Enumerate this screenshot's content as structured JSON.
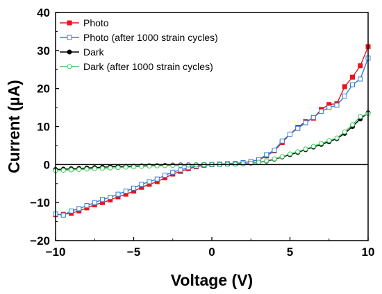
{
  "chart_data": {
    "type": "line",
    "xlabel": "Voltage (V)",
    "ylabel": "Current (µA)",
    "xlim": [
      -10,
      10
    ],
    "ylim": [
      -20,
      40
    ],
    "xticks": [
      -10,
      -5,
      0,
      5,
      10
    ],
    "xtick_labels": [
      "−10",
      "−5",
      "0",
      "5",
      "10"
    ],
    "yticks": [
      -20,
      -10,
      0,
      10,
      20,
      30,
      40
    ],
    "ytick_labels": [
      "−20",
      "−10",
      "0",
      "10",
      "20",
      "30",
      "40"
    ],
    "grid": false,
    "legend_position": "top-left",
    "series": [
      {
        "name": "Photo",
        "color": "#e8141e",
        "marker": "filled-square",
        "x": [
          -10,
          -9.5,
          -9,
          -8.5,
          -8,
          -7.5,
          -7,
          -6.5,
          -6,
          -5.5,
          -5,
          -4.5,
          -4,
          -3.5,
          -3,
          -2.5,
          -2,
          -1.5,
          -1,
          -0.5,
          0,
          0.5,
          1,
          1.5,
          2,
          2.5,
          3,
          3.5,
          4,
          4.5,
          5,
          5.5,
          6,
          6.5,
          7,
          7.5,
          8,
          8.5,
          9,
          9.5,
          10
        ],
        "y": [
          -13.2,
          -13.1,
          -12.8,
          -12.2,
          -11.4,
          -10.6,
          -10.0,
          -9.3,
          -8.5,
          -7.8,
          -7.0,
          -6.0,
          -5.2,
          -4.5,
          -3.5,
          -2.5,
          -1.8,
          -1.1,
          -0.6,
          -0.2,
          0,
          0.1,
          0.2,
          0.3,
          0.5,
          0.8,
          1.2,
          2.3,
          3.6,
          5.8,
          8.0,
          9.8,
          11.3,
          12.2,
          14.5,
          15.8,
          16.0,
          20.5,
          23.0,
          26.0,
          31.0
        ]
      },
      {
        "name": "Photo (after 1000 strain cycles)",
        "color": "#2e7fd8",
        "marker": "hollow-square",
        "x": [
          -10,
          -9.5,
          -9,
          -8.5,
          -8,
          -7.5,
          -7,
          -6.5,
          -6,
          -5.5,
          -5,
          -4.5,
          -4,
          -3.5,
          -3,
          -2.5,
          -2,
          -1.5,
          -1,
          -0.5,
          0,
          0.5,
          1,
          1.5,
          2,
          2.5,
          3,
          3.5,
          4,
          4.5,
          5,
          5.5,
          6,
          6.5,
          7,
          7.5,
          8,
          8.5,
          9,
          9.5,
          10
        ],
        "y": [
          -13.0,
          -13.3,
          -12.2,
          -11.6,
          -10.8,
          -10.0,
          -9.2,
          -8.6,
          -7.8,
          -7.0,
          -6.2,
          -5.2,
          -4.5,
          -3.8,
          -2.8,
          -2.0,
          -1.4,
          -0.8,
          -0.4,
          -0.1,
          0,
          0.1,
          0.2,
          0.3,
          0.5,
          0.8,
          1.3,
          2.6,
          3.8,
          6.2,
          8.0,
          9.5,
          11.0,
          12.4,
          14.0,
          15.0,
          15.6,
          18.0,
          21.0,
          22.5,
          28.0
        ]
      },
      {
        "name": "Dark",
        "color": "#000000",
        "marker": "filled-circle",
        "x": [
          -10,
          -9.5,
          -9,
          -8.5,
          -8,
          -7.5,
          -7,
          -6.5,
          -6,
          -5.5,
          -5,
          -4.5,
          -4,
          -3.5,
          -3,
          -2.5,
          -2,
          -1.5,
          -1,
          -0.5,
          0,
          0.5,
          1,
          1.5,
          2,
          2.5,
          3,
          3.5,
          4,
          4.5,
          5,
          5.5,
          6,
          6.5,
          7,
          7.5,
          8,
          8.5,
          9,
          9.5,
          10
        ],
        "y": [
          -1.3,
          -1.2,
          -1.1,
          -1.0,
          -0.9,
          -0.8,
          -0.7,
          -0.6,
          -0.5,
          -0.45,
          -0.4,
          -0.35,
          -0.3,
          -0.25,
          -0.2,
          -0.15,
          -0.1,
          -0.08,
          -0.05,
          -0.02,
          0,
          0.02,
          0.05,
          0.1,
          0.2,
          0.35,
          0.55,
          0.9,
          1.4,
          2.0,
          2.6,
          3.2,
          3.9,
          4.6,
          5.3,
          6.0,
          6.8,
          8.2,
          10.0,
          12.0,
          13.6
        ]
      },
      {
        "name": "Dark (after 1000 strain cycles)",
        "color": "#3ec85a",
        "marker": "hollow-circle",
        "x": [
          -10,
          -9.5,
          -9,
          -8.5,
          -8,
          -7.5,
          -7,
          -6.5,
          -6,
          -5.5,
          -5,
          -4.5,
          -4,
          -3.5,
          -3,
          -2.5,
          -2,
          -1.5,
          -1,
          -0.5,
          0,
          0.5,
          1,
          1.5,
          2,
          2.5,
          3,
          3.5,
          4,
          4.5,
          5,
          5.5,
          6,
          6.5,
          7,
          7.5,
          8,
          8.5,
          9,
          9.5,
          10
        ],
        "y": [
          -1.6,
          -1.5,
          -1.4,
          -1.3,
          -1.2,
          -1.1,
          -1.0,
          -0.9,
          -0.8,
          -0.7,
          -0.6,
          -0.5,
          -0.4,
          -0.35,
          -0.3,
          -0.25,
          -0.2,
          -0.15,
          -0.1,
          -0.05,
          0,
          0.02,
          0.05,
          0.1,
          0.2,
          0.35,
          0.6,
          1.0,
          1.5,
          2.1,
          2.8,
          3.4,
          4.1,
          4.8,
          5.6,
          6.3,
          7.0,
          8.6,
          10.5,
          12.6,
          13.4
        ]
      }
    ]
  }
}
